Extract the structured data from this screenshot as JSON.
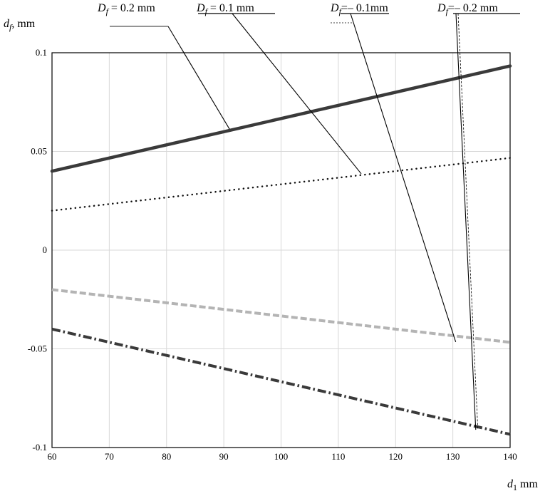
{
  "chart_data": {
    "type": "line",
    "title": "",
    "ylabel": {
      "main": "d",
      "sub": "f",
      "rest": ", mm"
    },
    "xlabel": {
      "main": "d",
      "sub": "1",
      "rest": "  mm"
    },
    "xlim": [
      60,
      140
    ],
    "ylim": [
      -0.1,
      0.1
    ],
    "xticks": [
      60,
      70,
      80,
      90,
      100,
      110,
      120,
      130,
      140
    ],
    "yticks": [
      -0.1,
      -0.05,
      0,
      0.05,
      0.1
    ],
    "xtick_labels": [
      "60",
      "70",
      "80",
      "90",
      "100",
      "110",
      "120",
      "130",
      "140"
    ],
    "ytick_labels": [
      "-0.1",
      "-0.05",
      "0",
      "0.05",
      "0.1"
    ],
    "grid": true,
    "x": [
      60,
      140
    ],
    "series": [
      {
        "name": "Df = 0.2 mm",
        "label_main": "D",
        "label_sub": "f",
        "label_rest": " = 0.2 mm",
        "style": "solid-thick",
        "color": "#3a3a3a",
        "values": [
          0.04,
          0.0933
        ]
      },
      {
        "name": "Df = 0.1 mm",
        "label_main": "D",
        "label_sub": "f",
        "label_rest": " = 0.1 mm",
        "style": "dotted",
        "color": "#111111",
        "values": [
          0.02,
          0.0467
        ]
      },
      {
        "name": "Df = - 0.1mm",
        "label_main": "D",
        "label_sub": "f",
        "label_rest": "=– 0.1mm",
        "style": "dashed",
        "color": "#b4b4b4",
        "values": [
          -0.02,
          -0.0467
        ]
      },
      {
        "name": "Df = - 0.2 mm",
        "label_main": "D",
        "label_sub": "f",
        "label_rest": "=– 0.2 mm",
        "style": "dashdot",
        "color": "#3a3a3a",
        "values": [
          -0.04,
          -0.0933
        ]
      }
    ],
    "leader_targets": [
      {
        "x": 91,
        "y": 0.0613
      },
      {
        "x": 114,
        "y": 0.0387
      },
      {
        "x": 130.5,
        "y": -0.0465
      },
      {
        "x": 134,
        "y": -0.091
      }
    ]
  }
}
